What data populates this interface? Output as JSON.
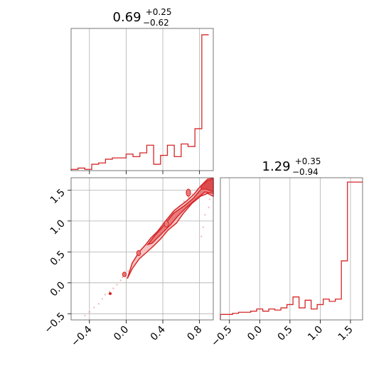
{
  "colors": {
    "accent": "#d62728",
    "grid": "#b0b0b0",
    "fill_light": "#f4c3c3",
    "fill_mid": "#e97c7d",
    "fill_dark": "#dd4b4c"
  },
  "chart_data": [
    {
      "type": "histogram",
      "panel": "top-left",
      "title": {
        "value": "0.69",
        "plus": "+0.25",
        "minus": "−0.62"
      },
      "xlim": [
        -0.6,
        0.95
      ],
      "bins": [
        -0.6,
        -0.525,
        -0.45,
        -0.375,
        -0.3,
        -0.225,
        -0.15,
        -0.075,
        0.0,
        0.075,
        0.15,
        0.225,
        0.3,
        0.375,
        0.45,
        0.525,
        0.6,
        0.675,
        0.75,
        0.825,
        0.9
      ],
      "counts": [
        1,
        2,
        1,
        5,
        6,
        9,
        10,
        10,
        13,
        11,
        14,
        20,
        5,
        12,
        20,
        11,
        21,
        19,
        33,
        107
      ],
      "ymax": 112,
      "xticks": [
        -0.4,
        0.0,
        0.4,
        0.8
      ],
      "grid": true
    },
    {
      "type": "histogram",
      "panel": "bottom-right",
      "title": {
        "value": "1.29",
        "plus": "+0.35",
        "minus": "−0.94"
      },
      "xlim": [
        -0.65,
        1.7
      ],
      "bins": [
        -0.65,
        -0.55,
        -0.45,
        -0.35,
        -0.25,
        -0.15,
        -0.05,
        0.05,
        0.15,
        0.25,
        0.35,
        0.45,
        0.55,
        0.65,
        0.75,
        0.85,
        0.95,
        1.05,
        1.15,
        1.25,
        1.35,
        1.45,
        1.55,
        1.65,
        1.7
      ],
      "counts": [
        5,
        5,
        6,
        7,
        7,
        8,
        10,
        8,
        10,
        9,
        11,
        14,
        21,
        11,
        18,
        10,
        14,
        19,
        17,
        19,
        54,
        126,
        126,
        126
      ],
      "ymax": 130,
      "xticks": [
        -0.5,
        0.0,
        0.5,
        1.0,
        1.5
      ],
      "grid": true
    },
    {
      "type": "scatter",
      "panel": "bottom-left",
      "xlim": [
        -0.6,
        0.95
      ],
      "ylim": [
        -0.6,
        1.7
      ],
      "xticks": [
        -0.4,
        0.0,
        0.4,
        0.8
      ],
      "yticks": [
        -0.5,
        0.0,
        0.5,
        1.0,
        1.5
      ],
      "grid": true,
      "points": [
        [
          -0.52,
          -0.62
        ],
        [
          -0.45,
          -0.53
        ],
        [
          -0.4,
          -0.47
        ],
        [
          -0.35,
          -0.4
        ],
        [
          -0.3,
          -0.34
        ],
        [
          -0.26,
          -0.26
        ],
        [
          -0.23,
          -0.19
        ],
        [
          -0.18,
          -0.14
        ],
        [
          -0.14,
          -0.09
        ],
        [
          -0.1,
          -0.03
        ],
        [
          -0.06,
          0.04
        ],
        [
          -0.04,
          0.09
        ],
        [
          -0.02,
          0.13
        ],
        [
          0.02,
          0.19
        ],
        [
          0.06,
          0.26
        ],
        [
          0.1,
          0.33
        ],
        [
          0.13,
          0.4
        ],
        [
          0.15,
          0.45
        ],
        [
          0.2,
          0.53
        ],
        [
          0.24,
          0.6
        ],
        [
          0.29,
          0.68
        ],
        [
          0.33,
          0.76
        ],
        [
          0.36,
          0.83
        ],
        [
          0.4,
          0.9
        ],
        [
          0.45,
          1.0
        ],
        [
          0.49,
          1.08
        ],
        [
          0.52,
          1.16
        ],
        [
          0.58,
          1.24
        ],
        [
          0.63,
          1.32
        ],
        [
          0.68,
          1.38
        ],
        [
          0.72,
          1.44
        ],
        [
          0.78,
          1.52
        ],
        [
          0.83,
          1.58
        ],
        [
          0.88,
          1.64
        ],
        [
          0.92,
          1.5
        ],
        [
          0.91,
          1.35
        ],
        [
          0.9,
          1.22
        ],
        [
          0.86,
          1.1
        ],
        [
          0.84,
          0.9
        ],
        [
          0.82,
          0.75
        ]
      ]
    }
  ]
}
